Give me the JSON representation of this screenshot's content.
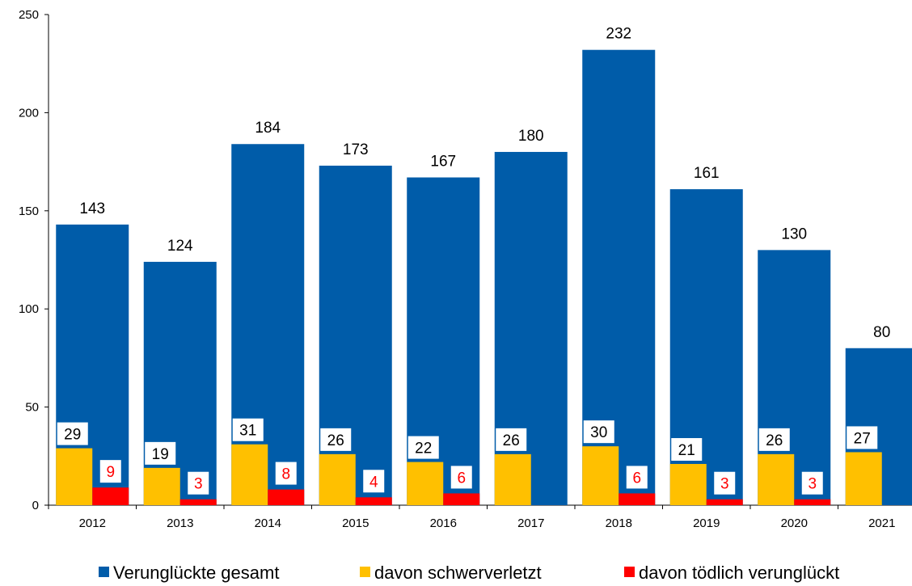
{
  "chart_data": {
    "type": "bar",
    "categories": [
      "2012",
      "2013",
      "2014",
      "2015",
      "2016",
      "2017",
      "2018",
      "2019",
      "2020",
      "2021"
    ],
    "series": [
      {
        "name": "Verunglückte gesamt",
        "values": [
          143,
          124,
          184,
          173,
          167,
          180,
          232,
          161,
          130,
          80
        ],
        "color": "#005ca9"
      },
      {
        "name": "davon schwerverletzt",
        "values": [
          29,
          19,
          31,
          26,
          22,
          26,
          30,
          21,
          26,
          27
        ],
        "color": "#ffc000"
      },
      {
        "name": "davon tödlich verunglückt",
        "values": [
          9,
          3,
          8,
          4,
          6,
          null,
          6,
          3,
          3,
          null
        ],
        "color": "#ff0000"
      }
    ],
    "yticks": [
      "0",
      "50",
      "100",
      "150",
      "200",
      "250"
    ],
    "ylim": [
      0,
      250
    ],
    "grid": false,
    "legend_position": "bottom",
    "title": "",
    "xlabel": "",
    "ylabel": ""
  }
}
